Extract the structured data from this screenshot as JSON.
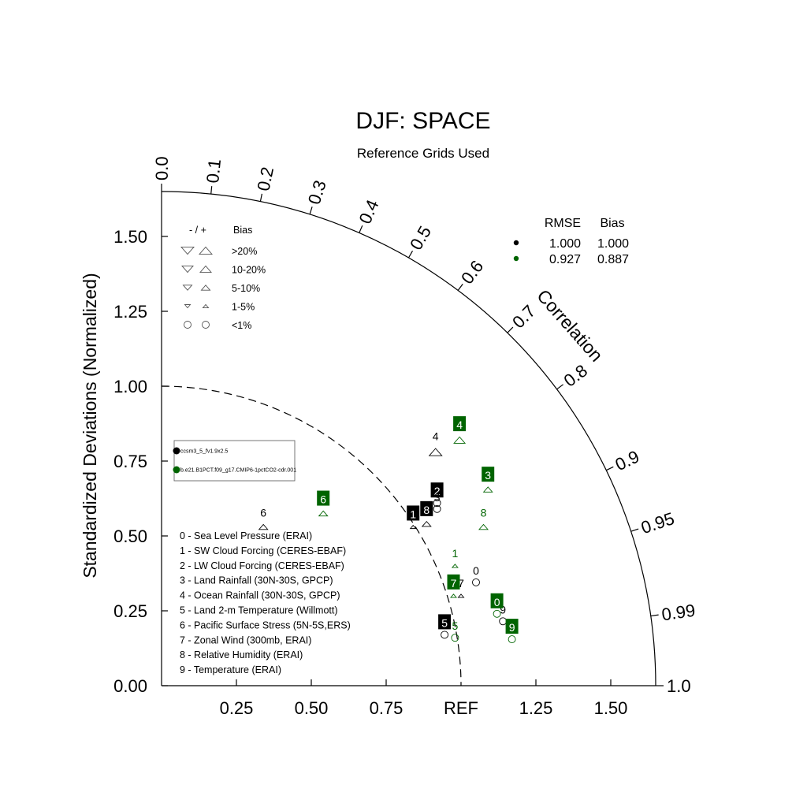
{
  "chart_data": {
    "type": "scatter",
    "subtype": "taylor-diagram",
    "title": "DJF: SPACE",
    "subtitle": "Reference Grids Used",
    "ylabel": "Standardized Deviations (Normalized)",
    "angle_label": "Correlation",
    "ref_label": "REF",
    "ylim": [
      0,
      1.65
    ],
    "xlim": [
      0,
      1.65
    ],
    "y_ticks": [
      "0.00",
      "0.25",
      "0.50",
      "0.75",
      "1.00",
      "1.25",
      "1.50"
    ],
    "x_ticks": [
      "0.25",
      "0.50",
      "0.75",
      "1.25",
      "1.50"
    ],
    "corr_ticks": [
      "0.0",
      "0.1",
      "0.2",
      "0.3",
      "0.4",
      "0.5",
      "0.6",
      "0.7",
      "0.8",
      "0.9",
      "0.95",
      "0.99",
      "1.0"
    ],
    "ref_arc_radius": 1.0,
    "bias_legend": {
      "header_sign": "- / +",
      "header_bias": "Bias",
      "rows": [
        {
          "label": ">20%",
          "size": 8
        },
        {
          "label": "10-20%",
          "size": 7
        },
        {
          "label": "5-10%",
          "size": 5.5
        },
        {
          "label": "1-5%",
          "size": 3.5
        },
        {
          "label": "<1%",
          "size": 0
        }
      ]
    },
    "stats_table": {
      "headers": [
        "RMSE",
        "Bias"
      ],
      "rows": [
        {
          "color": "#000000",
          "rmse": "1.000",
          "bias": "1.000"
        },
        {
          "color": "#006400",
          "rmse": "0.927",
          "bias": "0.887"
        }
      ]
    },
    "cases": [
      {
        "name": "ccsm3_5_fv1.9x2.5",
        "color": "#000000"
      },
      {
        "name": "b.e21.B1PCT.f09_g17.CMIP6-1pctCO2-cdr.001",
        "color": "#006400"
      }
    ],
    "variables": [
      "0 - Sea Level Pressure (ERAI)",
      "1 - SW Cloud Forcing (CERES-EBAF)",
      "2 - LW Cloud Forcing (CERES-EBAF)",
      "3 - Land Rainfall (30N-30S, GPCP)",
      "4 - Ocean Rainfall (30N-30S, GPCP)",
      "5 - Land 2-m Temperature (Willmott)",
      "6 - Pacific Surface Stress (5N-5S,ERS)",
      "7 - Zonal Wind (300mb, ERAI)",
      "8 - Relative Humidity (ERAI)",
      "9 - Temperature (ERAI)"
    ],
    "series": [
      {
        "name": "ccsm3_5_fv1.9x2.5",
        "color": "#000000",
        "points": [
          {
            "id": "0",
            "x": 1.05,
            "y": 0.345,
            "marker": "circle",
            "size": 0,
            "boxed": false
          },
          {
            "id": "1",
            "x": 0.84,
            "y": 0.53,
            "marker": "up",
            "size": 3.5,
            "boxed": true
          },
          {
            "id": "2",
            "x": 0.92,
            "y": 0.61,
            "marker": "circle",
            "size": 0,
            "boxed": true
          },
          {
            "id": "3",
            "x": 0.92,
            "y": 0.59,
            "marker": "circle",
            "size": 0,
            "boxed": false
          },
          {
            "id": "4",
            "x": 0.915,
            "y": 0.78,
            "marker": "up",
            "size": 8,
            "boxed": false
          },
          {
            "id": "5",
            "x": 0.945,
            "y": 0.17,
            "marker": "circle",
            "size": 0,
            "boxed": true
          },
          {
            "id": "6",
            "x": 0.34,
            "y": 0.53,
            "marker": "up",
            "size": 5.5,
            "boxed": false
          },
          {
            "id": "7",
            "x": 1.0,
            "y": 0.3,
            "marker": "up",
            "size": 3.5,
            "boxed": false
          },
          {
            "id": "8",
            "x": 0.885,
            "y": 0.54,
            "marker": "up",
            "size": 5.5,
            "boxed": true
          },
          {
            "id": "9",
            "x": 1.14,
            "y": 0.215,
            "marker": "circle",
            "size": 0,
            "boxed": false
          }
        ]
      },
      {
        "name": "b.e21.B1PCT.f09_g17.CMIP6-1pctCO2-cdr.001",
        "color": "#006400",
        "points": [
          {
            "id": "0",
            "x": 1.12,
            "y": 0.24,
            "marker": "circle",
            "size": 0,
            "boxed": true
          },
          {
            "id": "1",
            "x": 0.98,
            "y": 0.4,
            "marker": "up",
            "size": 3.5,
            "boxed": false
          },
          {
            "id": "3",
            "x": 1.09,
            "y": 0.655,
            "marker": "up",
            "size": 5.5,
            "boxed": true
          },
          {
            "id": "4",
            "x": 0.995,
            "y": 0.82,
            "marker": "up",
            "size": 7,
            "boxed": true
          },
          {
            "id": "5",
            "x": 0.98,
            "y": 0.16,
            "marker": "circle",
            "size": 0,
            "boxed": false
          },
          {
            "id": "6",
            "x": 0.54,
            "y": 0.575,
            "marker": "up",
            "size": 5.5,
            "boxed": true
          },
          {
            "id": "7",
            "x": 0.975,
            "y": 0.3,
            "marker": "up",
            "size": 3.5,
            "boxed": true
          },
          {
            "id": "8",
            "x": 1.075,
            "y": 0.53,
            "marker": "up",
            "size": 5.5,
            "boxed": false
          },
          {
            "id": "9",
            "x": 1.17,
            "y": 0.155,
            "marker": "circle",
            "size": 0,
            "boxed": true
          }
        ]
      }
    ]
  }
}
